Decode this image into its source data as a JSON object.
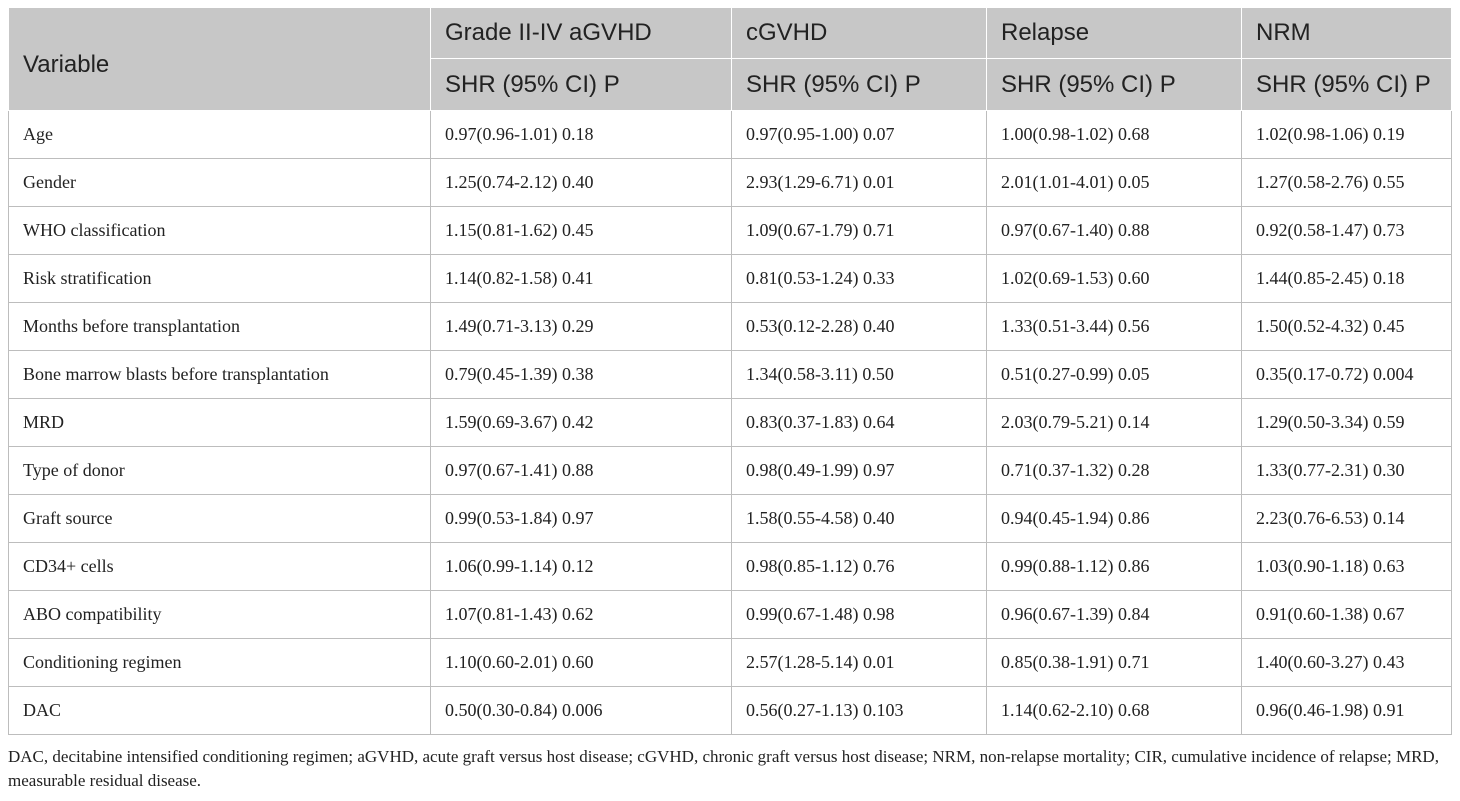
{
  "table": {
    "header": {
      "variable": "Variable",
      "columns": [
        "Grade II-IV aGVHD",
        "cGVHD",
        "Relapse",
        "NRM"
      ],
      "sub_label": "SHR (95% CI) P"
    },
    "rows": [
      {
        "variable": "Age",
        "values": [
          "0.97(0.96-1.01) 0.18",
          "0.97(0.95-1.00) 0.07",
          "1.00(0.98-1.02) 0.68",
          "1.02(0.98-1.06) 0.19"
        ]
      },
      {
        "variable": "Gender",
        "values": [
          "1.25(0.74-2.12) 0.40",
          "2.93(1.29-6.71) 0.01",
          "2.01(1.01-4.01) 0.05",
          "1.27(0.58-2.76) 0.55"
        ]
      },
      {
        "variable": "WHO classification",
        "values": [
          "1.15(0.81-1.62) 0.45",
          "1.09(0.67-1.79) 0.71",
          "0.97(0.67-1.40) 0.88",
          "0.92(0.58-1.47) 0.73"
        ]
      },
      {
        "variable": "Risk stratification",
        "values": [
          "1.14(0.82-1.58) 0.41",
          "0.81(0.53-1.24) 0.33",
          "1.02(0.69-1.53) 0.60",
          "1.44(0.85-2.45) 0.18"
        ]
      },
      {
        "variable": "Months before transplantation",
        "values": [
          "1.49(0.71-3.13) 0.29",
          "0.53(0.12-2.28) 0.40",
          "1.33(0.51-3.44) 0.56",
          "1.50(0.52-4.32) 0.45"
        ]
      },
      {
        "variable": "Bone marrow blasts before transplantation",
        "values": [
          "0.79(0.45-1.39) 0.38",
          "1.34(0.58-3.11) 0.50",
          "0.51(0.27-0.99) 0.05",
          "0.35(0.17-0.72) 0.004"
        ]
      },
      {
        "variable": "MRD",
        "values": [
          "1.59(0.69-3.67) 0.42",
          "0.83(0.37-1.83) 0.64",
          "2.03(0.79-5.21) 0.14",
          "1.29(0.50-3.34) 0.59"
        ]
      },
      {
        "variable": "Type of donor",
        "values": [
          "0.97(0.67-1.41) 0.88",
          "0.98(0.49-1.99) 0.97",
          "0.71(0.37-1.32) 0.28",
          "1.33(0.77-2.31) 0.30"
        ]
      },
      {
        "variable": "Graft source",
        "values": [
          "0.99(0.53-1.84) 0.97",
          "1.58(0.55-4.58) 0.40",
          "0.94(0.45-1.94) 0.86",
          "2.23(0.76-6.53) 0.14"
        ]
      },
      {
        "variable": "CD34+ cells",
        "values": [
          "1.06(0.99-1.14) 0.12",
          "0.98(0.85-1.12) 0.76",
          "0.99(0.88-1.12) 0.86",
          "1.03(0.90-1.18) 0.63"
        ]
      },
      {
        "variable": "ABO compatibility",
        "values": [
          "1.07(0.81-1.43) 0.62",
          "0.99(0.67-1.48) 0.98",
          "0.96(0.67-1.39) 0.84",
          "0.91(0.60-1.38) 0.67"
        ]
      },
      {
        "variable": "Conditioning regimen",
        "values": [
          "1.10(0.60-2.01) 0.60",
          "2.57(1.28-5.14) 0.01",
          "0.85(0.38-1.91) 0.71",
          "1.40(0.60-3.27) 0.43"
        ]
      },
      {
        "variable": "DAC",
        "values": [
          "0.50(0.30-0.84) 0.006",
          "0.56(0.27-1.13) 0.103",
          "1.14(0.62-2.10) 0.68",
          "0.96(0.46-1.98) 0.91"
        ]
      }
    ]
  },
  "footnote": "DAC, decitabine intensified conditioning regimen; aGVHD, acute graft versus host disease; cGVHD, chronic graft versus host disease; NRM, non-relapse mortality; CIR, cumulative incidence of relapse; MRD, measurable residual disease.",
  "colors": {
    "header_bg": "#c7c7c7",
    "border": "#bdbdbd"
  }
}
